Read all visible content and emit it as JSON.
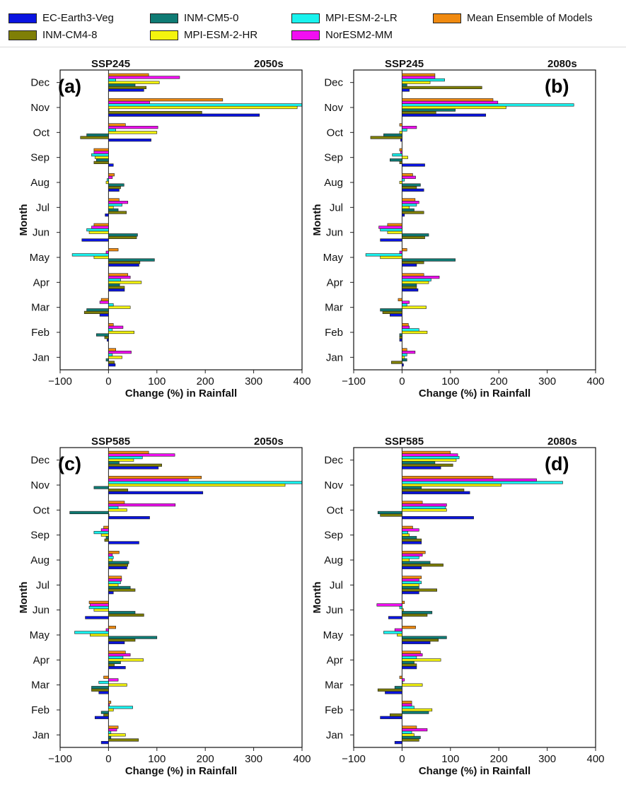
{
  "legend": [
    {
      "name": "EC-Earth3-Veg",
      "color": "#0a14e0"
    },
    {
      "name": "INM-CM5-0",
      "color": "#0f7b74"
    },
    {
      "name": "MPI-ESM-2-LR",
      "color": "#19f2ee"
    },
    {
      "name": "Mean Ensemble of Models",
      "color": "#f08a10"
    },
    {
      "name": "INM-CM4-8",
      "color": "#7f7f06"
    },
    {
      "name": "MPI-ESM-2-HR",
      "color": "#f4f40e"
    },
    {
      "name": "NorESM2-MM",
      "color": "#f20ef2"
    }
  ],
  "chart_data": [
    {
      "type": "bar",
      "orientation": "horizontal",
      "panel_label": "(a)",
      "scenario": "SSP245",
      "period": "2050s",
      "xlabel": "Change (%) in Rainfall",
      "ylabel": "Month",
      "xlim": [
        -100,
        400
      ],
      "xticks": [
        -100,
        0,
        100,
        200,
        300,
        400
      ],
      "categories": [
        "Jan",
        "Feb",
        "Mar",
        "Apr",
        "May",
        "Jun",
        "Jul",
        "Aug",
        "Sep",
        "Oct",
        "Nov",
        "Dec"
      ],
      "series": [
        {
          "name": "EC-Earth3-Veg",
          "values": [
            14,
            -3,
            -18,
            33,
            63,
            -55,
            -7,
            22,
            10,
            88,
            312,
            73
          ]
        },
        {
          "name": "INM-CM4-8",
          "values": [
            12,
            -8,
            -50,
            33,
            65,
            58,
            37,
            25,
            -30,
            -58,
            193,
            78
          ]
        },
        {
          "name": "INM-CM5-0",
          "values": [
            -5,
            -25,
            -45,
            23,
            95,
            60,
            20,
            32,
            -25,
            -45,
            0,
            55
          ]
        },
        {
          "name": "MPI-ESM-2-HR",
          "values": [
            28,
            53,
            45,
            68,
            -30,
            -40,
            10,
            -5,
            -28,
            100,
            390,
            105
          ]
        },
        {
          "name": "MPI-ESM-2-LR",
          "values": [
            8,
            8,
            10,
            25,
            -75,
            -45,
            28,
            -3,
            -35,
            15,
            400,
            15
          ]
        },
        {
          "name": "NorESM2-MM",
          "values": [
            47,
            30,
            -18,
            45,
            -5,
            -35,
            40,
            8,
            -30,
            102,
            85,
            147
          ]
        },
        {
          "name": "Mean Ensemble of Models",
          "values": [
            15,
            10,
            -15,
            40,
            20,
            -30,
            22,
            12,
            -30,
            35,
            236,
            83
          ]
        }
      ]
    },
    {
      "type": "bar",
      "orientation": "horizontal",
      "panel_label": "(b)",
      "scenario": "SSP245",
      "period": "2080s",
      "xlabel": "Change (%) in Rainfall",
      "ylabel": "Month",
      "xlim": [
        -100,
        400
      ],
      "xticks": [
        -100,
        0,
        100,
        200,
        300,
        400
      ],
      "categories": [
        "Jan",
        "Feb",
        "Mar",
        "Apr",
        "May",
        "Jun",
        "Jul",
        "Aug",
        "Sep",
        "Oct",
        "Nov",
        "Dec"
      ],
      "series": [
        {
          "name": "EC-Earth3-Veg",
          "values": [
            3,
            -5,
            -25,
            33,
            30,
            -45,
            5,
            45,
            47,
            -3,
            173,
            15
          ]
        },
        {
          "name": "INM-CM4-8",
          "values": [
            -22,
            -5,
            -40,
            30,
            45,
            47,
            45,
            30,
            -5,
            -65,
            70,
            165
          ]
        },
        {
          "name": "INM-CM5-0",
          "values": [
            10,
            -5,
            -45,
            30,
            110,
            55,
            25,
            38,
            -25,
            -38,
            110,
            10
          ]
        },
        {
          "name": "MPI-ESM-2-HR",
          "values": [
            5,
            52,
            50,
            55,
            -45,
            -30,
            15,
            -5,
            12,
            -5,
            215,
            58
          ]
        },
        {
          "name": "MPI-ESM-2-LR",
          "values": [
            10,
            35,
            10,
            60,
            -75,
            -45,
            30,
            5,
            -20,
            10,
            355,
            88
          ]
        },
        {
          "name": "NorESM2-MM",
          "values": [
            27,
            15,
            15,
            77,
            -5,
            -48,
            35,
            28,
            -3,
            30,
            198,
            68
          ]
        },
        {
          "name": "Mean Ensemble of Models",
          "values": [
            10,
            13,
            -8,
            45,
            10,
            -30,
            27,
            22,
            -5,
            -5,
            188,
            68
          ]
        }
      ]
    },
    {
      "type": "bar",
      "orientation": "horizontal",
      "panel_label": "(c)",
      "scenario": "SSP585",
      "period": "2050s",
      "xlabel": "Change (%) in Rainfall",
      "ylabel": "Month",
      "xlim": [
        -100,
        400
      ],
      "xticks": [
        -100,
        0,
        100,
        200,
        300,
        400
      ],
      "categories": [
        "Jan",
        "Feb",
        "Mar",
        "Apr",
        "May",
        "Jun",
        "Jul",
        "Aug",
        "Sep",
        "Oct",
        "Nov",
        "Dec"
      ],
      "series": [
        {
          "name": "EC-Earth3-Veg",
          "values": [
            -15,
            -28,
            -20,
            35,
            33,
            -48,
            10,
            38,
            63,
            85,
            195,
            103
          ]
        },
        {
          "name": "INM-CM4-8",
          "values": [
            62,
            -10,
            -35,
            12,
            55,
            73,
            55,
            40,
            -8,
            0,
            40,
            110
          ]
        },
        {
          "name": "INM-CM5-0",
          "values": [
            5,
            -15,
            -35,
            25,
            100,
            55,
            45,
            42,
            -5,
            -80,
            -30,
            22
          ]
        },
        {
          "name": "MPI-ESM-2-HR",
          "values": [
            35,
            10,
            38,
            72,
            -38,
            -30,
            20,
            8,
            -15,
            38,
            365,
            52
          ]
        },
        {
          "name": "MPI-ESM-2-LR",
          "values": [
            5,
            50,
            -20,
            30,
            -70,
            -40,
            25,
            10,
            -30,
            20,
            400,
            70
          ]
        },
        {
          "name": "NorESM2-MM",
          "values": [
            17,
            2,
            20,
            45,
            -5,
            -38,
            27,
            8,
            -15,
            138,
            165,
            137
          ]
        },
        {
          "name": "Mean Ensemble of Models",
          "values": [
            20,
            5,
            -10,
            35,
            15,
            -40,
            27,
            22,
            -10,
            33,
            192,
            83
          ]
        }
      ]
    },
    {
      "type": "bar",
      "orientation": "horizontal",
      "panel_label": "(d)",
      "scenario": "SSP585",
      "period": "2080s",
      "xlabel": "Change (%) in Rainfall",
      "ylabel": "Month",
      "xlim": [
        -100,
        400
      ],
      "xticks": [
        -100,
        0,
        100,
        200,
        300,
        400
      ],
      "categories": [
        "Jan",
        "Feb",
        "Mar",
        "Apr",
        "May",
        "Jun",
        "Jul",
        "Aug",
        "Sep",
        "Oct",
        "Nov",
        "Dec"
      ],
      "series": [
        {
          "name": "EC-Earth3-Veg",
          "values": [
            -15,
            -45,
            -35,
            30,
            58,
            -28,
            35,
            40,
            40,
            148,
            140,
            80
          ]
        },
        {
          "name": "INM-CM4-8",
          "values": [
            35,
            -25,
            -50,
            30,
            75,
            52,
            72,
            85,
            40,
            -45,
            128,
            105
          ]
        },
        {
          "name": "INM-CM5-0",
          "values": [
            38,
            55,
            -15,
            25,
            92,
            62,
            35,
            58,
            30,
            -50,
            40,
            68
          ]
        },
        {
          "name": "MPI-ESM-2-HR",
          "values": [
            25,
            62,
            42,
            80,
            -10,
            3,
            35,
            15,
            15,
            92,
            205,
            112
          ]
        },
        {
          "name": "MPI-ESM-2-LR",
          "values": [
            20,
            25,
            0,
            30,
            -38,
            -5,
            40,
            35,
            12,
            90,
            332,
            118
          ]
        },
        {
          "name": "NorESM2-MM",
          "values": [
            52,
            20,
            5,
            42,
            -15,
            -52,
            35,
            42,
            35,
            92,
            278,
            115
          ]
        },
        {
          "name": "Mean Ensemble of Models",
          "values": [
            30,
            20,
            -5,
            38,
            28,
            5,
            40,
            48,
            22,
            42,
            188,
            100
          ]
        }
      ]
    }
  ]
}
